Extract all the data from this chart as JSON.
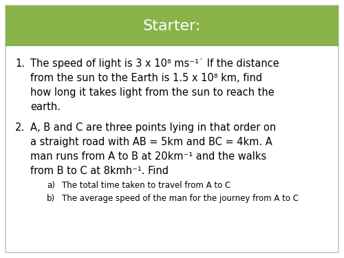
{
  "title": "Starter:",
  "title_bg_color": "#8ab34a",
  "title_text_color": "#ffffff",
  "bg_color": "#ffffff",
  "q1_l1": "The speed of light is 3 x 10⁸ ms⁻¹˙ If the distance",
  "q1_l2": "from the sun to the Earth is 1.5 x 10⁸ km, find",
  "q1_l3": "how long it takes light from the sun to reach the",
  "q1_l4": "earth.",
  "q2_l1": "A, B and C are three points lying in that order on",
  "q2_l2": "a straight road with AB = 5km and BC = 4km. A",
  "q2_l3": "man runs from A to B at 20km⁻¹ and the walks",
  "q2_l4": "from B to C at 8kmh⁻¹. Find",
  "qa_label": "a)",
  "qa_text": "The total time taken to travel from A to C",
  "qb_label": "b)",
  "qb_text": "The average speed of the man for the journey from A to C",
  "main_fontsize": 10.5,
  "sub_fontsize": 8.5,
  "title_fontsize": 16,
  "border_color": "#c8c8c8"
}
